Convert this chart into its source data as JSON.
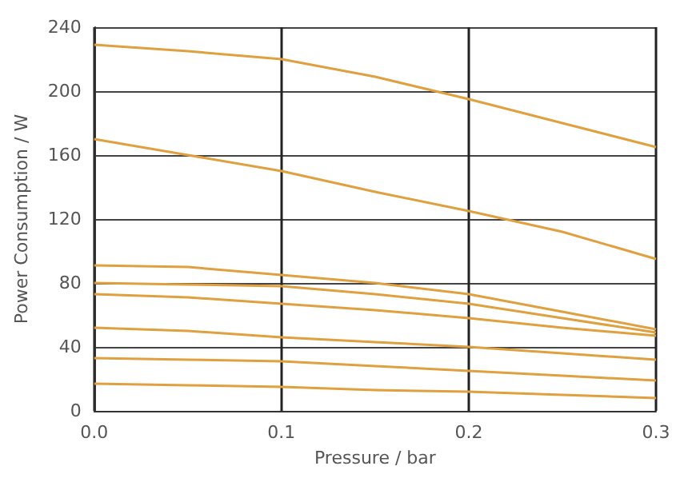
{
  "chart_data": {
    "type": "line",
    "xlabel": "Pressure / bar",
    "ylabel": "Power Consumption / W",
    "xlim": [
      0,
      0.3
    ],
    "xticks": [
      {
        "value": 0,
        "label": "0.0"
      },
      0.1,
      0.2,
      0.3
    ],
    "ylim": [
      0,
      240
    ],
    "yticks": [
      0,
      40,
      80,
      120,
      160,
      200,
      240
    ],
    "grid": true,
    "marker": "none",
    "line_style": "solid",
    "x": [
      0,
      0.05,
      0.1,
      0.15,
      0.2,
      0.25,
      0.3
    ],
    "series": [
      {
        "color": "#e0a040",
        "values": [
          229,
          225,
          220,
          209,
          195,
          180,
          165
        ]
      },
      {
        "color": "#e0a040",
        "values": [
          170,
          160,
          150,
          137,
          125,
          112,
          95
        ]
      },
      {
        "color": "#e0a040",
        "values": [
          91,
          90,
          85,
          80,
          73,
          62,
          51
        ]
      },
      {
        "color": "#e0a040",
        "values": [
          80,
          79,
          78,
          73,
          67,
          58,
          49
        ]
      },
      {
        "color": "#e0a040",
        "values": [
          73,
          71,
          67,
          63,
          58,
          52,
          47
        ]
      },
      {
        "color": "#e0a040",
        "values": [
          52,
          50,
          46,
          43,
          40,
          36,
          32
        ]
      },
      {
        "color": "#e0a040",
        "values": [
          33,
          32,
          31,
          28,
          25,
          22,
          19
        ]
      },
      {
        "color": "#e0a040",
        "values": [
          17,
          16,
          15,
          13,
          12,
          10,
          8
        ]
      }
    ]
  }
}
